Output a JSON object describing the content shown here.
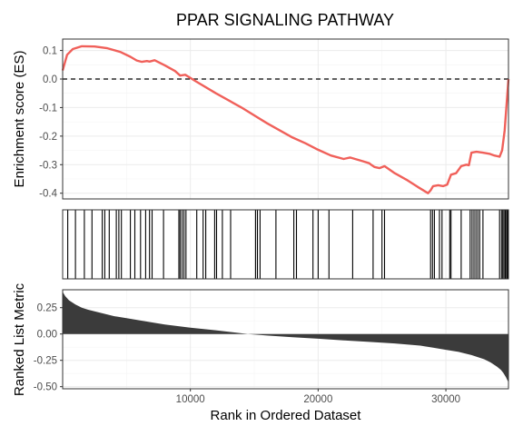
{
  "chart_data": [
    {
      "type": "line",
      "panel": "enrichment-score",
      "title": "PPAR SIGNALING PATHWAY",
      "ylabel": "Enrichment score (ES)",
      "xlim": [
        1,
        34900
      ],
      "ylim": [
        -0.42,
        0.14
      ],
      "yticks": [
        0.1,
        0.0,
        -0.1,
        -0.2,
        -0.3,
        -0.4
      ],
      "ytick_labels": [
        "0.1",
        "0.0",
        "-0.1",
        "-0.2",
        "-0.3",
        "-0.4"
      ],
      "reference_line": 0,
      "line_color": "#f0605a",
      "series": [
        {
          "x": [
            1,
            350,
            800,
            1500,
            2500,
            3500,
            4500,
            5300,
            5800,
            6200,
            6600,
            6800,
            7200,
            8000,
            8800,
            9200,
            9600,
            10500,
            12000,
            14000,
            16000,
            18000,
            19000,
            20000,
            21000,
            22000,
            22500,
            23500,
            24000,
            24200,
            24400,
            24800,
            25200,
            26000,
            27000,
            27800,
            28600,
            28800,
            29000,
            29400,
            29800,
            30100,
            30400,
            30800,
            31200,
            31600,
            31800,
            32000,
            32400,
            32900,
            33400,
            33800,
            34200,
            34400,
            34600,
            34800,
            34900
          ],
          "values": [
            0.03,
            0.085,
            0.105,
            0.115,
            0.114,
            0.108,
            0.095,
            0.078,
            0.065,
            0.06,
            0.063,
            0.061,
            0.066,
            0.048,
            0.028,
            0.012,
            0.015,
            -0.01,
            -0.05,
            -0.1,
            -0.155,
            -0.205,
            -0.225,
            -0.248,
            -0.268,
            -0.28,
            -0.275,
            -0.288,
            -0.295,
            -0.302,
            -0.308,
            -0.312,
            -0.305,
            -0.33,
            -0.355,
            -0.378,
            -0.4,
            -0.39,
            -0.375,
            -0.372,
            -0.375,
            -0.37,
            -0.335,
            -0.33,
            -0.305,
            -0.3,
            -0.302,
            -0.258,
            -0.255,
            -0.258,
            -0.262,
            -0.268,
            -0.272,
            -0.25,
            -0.18,
            -0.06,
            0.0
          ]
        }
      ]
    },
    {
      "type": "rug",
      "panel": "hit-positions",
      "xlim": [
        1,
        34900
      ],
      "positions": [
        400,
        1000,
        1700,
        2300,
        3100,
        3300,
        3650,
        4200,
        4400,
        4600,
        5300,
        5650,
        6100,
        6500,
        6800,
        7000,
        7900,
        9100,
        9200,
        9350,
        9500,
        9650,
        10500,
        11000,
        11200,
        11900,
        12050,
        12500,
        13150,
        15100,
        15250,
        15450,
        16700,
        18100,
        18300,
        19600,
        20000,
        20850,
        22700,
        24300,
        25000,
        25200,
        28800,
        28950,
        29100,
        29500,
        29700,
        30300,
        30400,
        31200,
        31900,
        32050,
        32200,
        32350,
        32500,
        32650,
        32900,
        34200,
        34350,
        34450,
        34550,
        34650,
        34750,
        34820,
        34880
      ]
    },
    {
      "type": "area",
      "panel": "ranked-list-metric",
      "xlabel": "Rank in Ordered Dataset",
      "ylabel": "Ranked List Metric",
      "xlim": [
        1,
        34900
      ],
      "ylim": [
        -0.52,
        0.42
      ],
      "xticks": [
        10000,
        20000,
        30000
      ],
      "xtick_labels": [
        "10000",
        "20000",
        "30000"
      ],
      "yticks": [
        0.25,
        0.0,
        -0.25,
        -0.5
      ],
      "ytick_labels": [
        "0.25",
        "0.00",
        "-0.25",
        "-0.50"
      ],
      "fill_color": "#3b3b3b",
      "series": [
        {
          "x": [
            1,
            200,
            500,
            1000,
            1500,
            2000,
            3000,
            4000,
            5000,
            6000,
            8000,
            10000,
            12000,
            14500,
            16000,
            18000,
            20000,
            22000,
            24000,
            26000,
            28000,
            29000,
            30000,
            31000,
            32000,
            33000,
            33500,
            34000,
            34300,
            34500,
            34700,
            34900
          ],
          "values": [
            0.4,
            0.36,
            0.32,
            0.28,
            0.25,
            0.23,
            0.2,
            0.17,
            0.15,
            0.13,
            0.09,
            0.06,
            0.035,
            0.0,
            -0.015,
            -0.03,
            -0.045,
            -0.06,
            -0.075,
            -0.09,
            -0.11,
            -0.13,
            -0.15,
            -0.17,
            -0.2,
            -0.24,
            -0.27,
            -0.31,
            -0.34,
            -0.37,
            -0.41,
            -0.46
          ]
        }
      ]
    }
  ]
}
